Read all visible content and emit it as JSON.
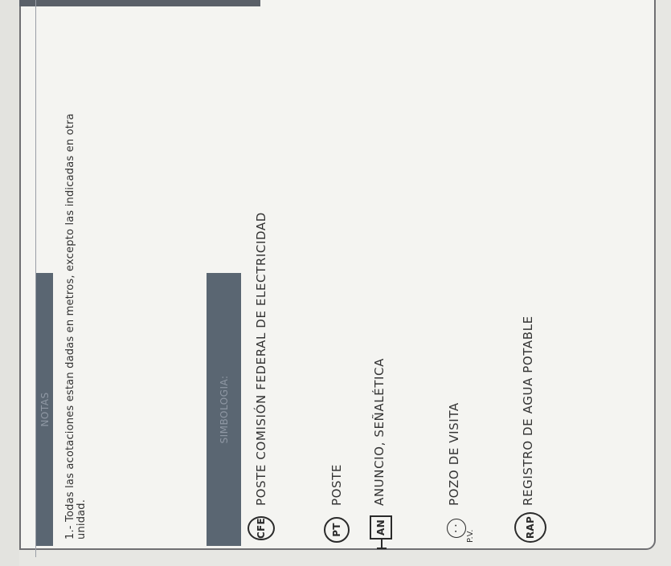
{
  "notes": {
    "header": "NOTAS",
    "line1": "1.- Todas las acotaciones estan dadas en metros, excepto las indicadas en otra",
    "line2": "unidad."
  },
  "symbology": {
    "header": "SIMBOLOGIA:",
    "items": [
      {
        "symbol": "CFE",
        "label": "POSTE COMISIÓN FEDERAL DE ELECTRICIDAD",
        "icon": "cfe-circle-icon"
      },
      {
        "symbol": "PT",
        "label": "POSTE",
        "icon": "pt-circle-icon"
      },
      {
        "symbol": "AN",
        "label": "ANUNCIO, SEÑALÉTICA",
        "icon": "an-square-icon"
      },
      {
        "symbol": "P.V.",
        "label": "POZO DE VISITA",
        "icon": "manhole-icon"
      },
      {
        "symbol": "RAP",
        "label": "REGISTRO DE AGUA POTABLE",
        "icon": "rap-circle-icon"
      }
    ]
  }
}
